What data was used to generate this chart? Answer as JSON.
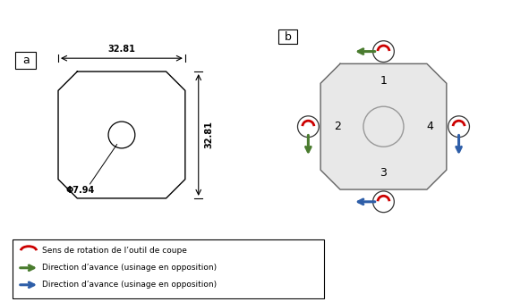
{
  "bg_color": "#ffffff",
  "shape_fill": "#e0e0e0",
  "shape_edge": "#555555",
  "dim_color": "#000000",
  "red_arc_color": "#cc0000",
  "green_color": "#4a7c2f",
  "blue_color": "#2e5ea8",
  "dim_width": "32.81",
  "dim_height": "32.81",
  "dim_diam": "Φ7.94",
  "legend_arc": "Sens de rotation de l’outil de coupe",
  "legend_green": "Direction d’avance (usinage en opposition)",
  "legend_blue": "Direction d’avance (usinage en opposition)",
  "face_labels": [
    "1",
    "2",
    "3",
    "4"
  ]
}
